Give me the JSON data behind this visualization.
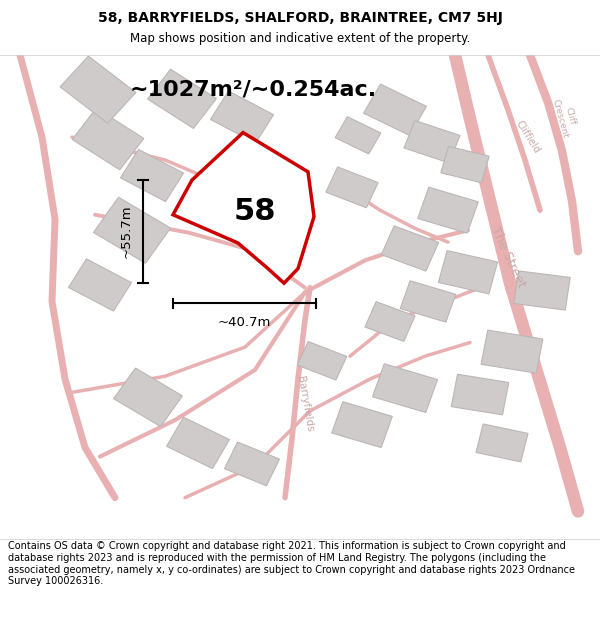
{
  "title": "58, BARRYFIELDS, SHALFORD, BRAINTREE, CM7 5HJ",
  "subtitle": "Map shows position and indicative extent of the property.",
  "footer": "Contains OS data © Crown copyright and database right 2021. This information is subject to Crown copyright and database rights 2023 and is reproduced with the permission of HM Land Registry. The polygons (including the associated geometry, namely x, y co-ordinates) are subject to Crown copyright and database rights 2023 Ordnance Survey 100026316.",
  "area_text": "~1027m²/~0.254ac.",
  "label_58": "58",
  "dim_width": "~40.7m",
  "dim_height": "~55.7m",
  "map_bg": "#f7f2f2",
  "plot_color": "#cc0000",
  "road_color": "#e8b0b0",
  "building_color": "#d0cbcb",
  "building_edge": "#bdb5b5",
  "street_label_color": "#c8a8a8"
}
